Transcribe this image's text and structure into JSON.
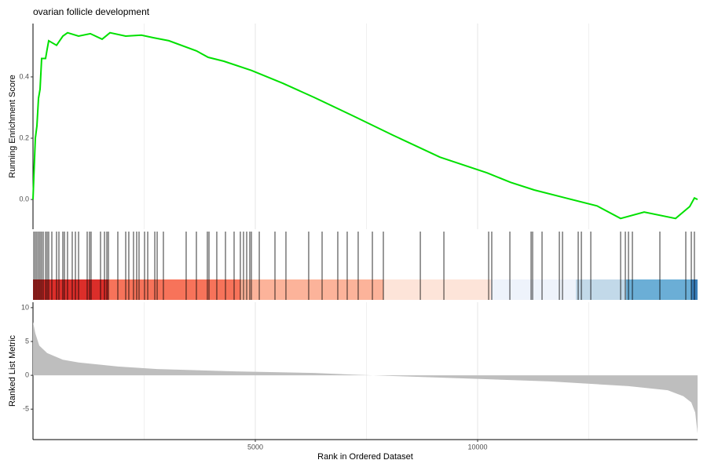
{
  "chart_data": [
    {
      "type": "line",
      "title": "ovarian follicle development",
      "ylabel": "Running Enrichment Score",
      "color": "#00e000",
      "xlim": [
        0,
        14947
      ],
      "ylim": [
        -0.097,
        0.574
      ],
      "yticks": [
        {
          "value": 0,
          "label": "0.0"
        },
        {
          "value": 0.2,
          "label": "0.2"
        },
        {
          "value": 0.4,
          "label": "0.4"
        }
      ],
      "xticks": [
        5000,
        10000
      ],
      "x_minor_grid": [
        2500,
        7500,
        12500
      ],
      "grid": true,
      "x": [
        0,
        18,
        53,
        88,
        124,
        159,
        194,
        230,
        283,
        318,
        353,
        530,
        671,
        777,
        1025,
        1290,
        1555,
        1731,
        2085,
        2438,
        2703,
        3057,
        3675,
        3940,
        4293,
        4912,
        5618,
        6325,
        7208,
        8092,
        9152,
        10212,
        10742,
        11272,
        11979,
        12686,
        13216,
        13746,
        14452,
        14770,
        14876,
        14947
      ],
      "values": [
        0,
        0.07,
        0.2,
        0.24,
        0.33,
        0.36,
        0.46,
        0.46,
        0.46,
        0.49,
        0.518,
        0.503,
        0.533,
        0.544,
        0.533,
        0.541,
        0.523,
        0.544,
        0.533,
        0.536,
        0.528,
        0.518,
        0.485,
        0.464,
        0.451,
        0.421,
        0.379,
        0.333,
        0.272,
        0.21,
        0.138,
        0.087,
        0.056,
        0.031,
        0.005,
        -0.021,
        -0.062,
        -0.041,
        -0.062,
        -0.023,
        0.005,
        0
      ]
    },
    {
      "type": "rug",
      "xlim": [
        0,
        14947
      ],
      "hits": [
        18,
        53,
        88,
        124,
        159,
        194,
        230,
        283,
        318,
        353,
        424,
        530,
        583,
        671,
        707,
        777,
        883,
        954,
        1025,
        1219,
        1272,
        1307,
        1519,
        1608,
        1661,
        1696,
        1908,
        2085,
        2155,
        2261,
        2332,
        2385,
        2509,
        2580,
        2739,
        2792,
        2933,
        3445,
        3675,
        3922,
        3958,
        4134,
        4329,
        4523,
        4664,
        4735,
        4806,
        4876,
        4912,
        5089,
        5442,
        5689,
        6201,
        6502,
        6855,
        7067,
        7314,
        7633,
        7880,
        8711,
        9241,
        10248,
        10318,
        10725,
        11202,
        11237,
        11449,
        11838,
        11909,
        12262,
        12333,
        12545,
        13216,
        13322,
        13393,
        13481,
        14099,
        14682,
        14806,
        14876
      ],
      "band_edges": [
        0,
        1696,
        4664,
        7880,
        10301,
        12209,
        13340,
        14806,
        14947
      ],
      "band_colors": [
        "#dc2e2a",
        "#f7735a",
        "#fcb39a",
        "#fde4d9",
        "#eef3fb",
        "#c2d9e9",
        "#6baed6",
        "#3a7fba"
      ]
    },
    {
      "type": "area",
      "ylabel": "Ranked List Metric",
      "xlabel": "Rank in Ordered Dataset",
      "color": "#bebebe",
      "xlim": [
        0,
        14947
      ],
      "ylim": [
        -9.5,
        10.8
      ],
      "yticks": [
        10,
        5,
        0,
        -5
      ],
      "xticks": [
        5000,
        10000
      ],
      "x_minor_grid": [
        2500,
        7500,
        12500
      ],
      "grid": true,
      "x": [
        0,
        53,
        141,
        318,
        671,
        1025,
        1908,
        2792,
        4558,
        6325,
        7208,
        8092,
        9859,
        11626,
        13393,
        14276,
        14629,
        14806,
        14894,
        14947
      ],
      "values": [
        7.9,
        6.2,
        4.4,
        3.3,
        2.3,
        1.9,
        1.3,
        0.93,
        0.58,
        0.35,
        0.1,
        -0.1,
        -0.5,
        -0.9,
        -1.6,
        -2.2,
        -3.1,
        -4,
        -5.5,
        -8.6
      ]
    }
  ]
}
